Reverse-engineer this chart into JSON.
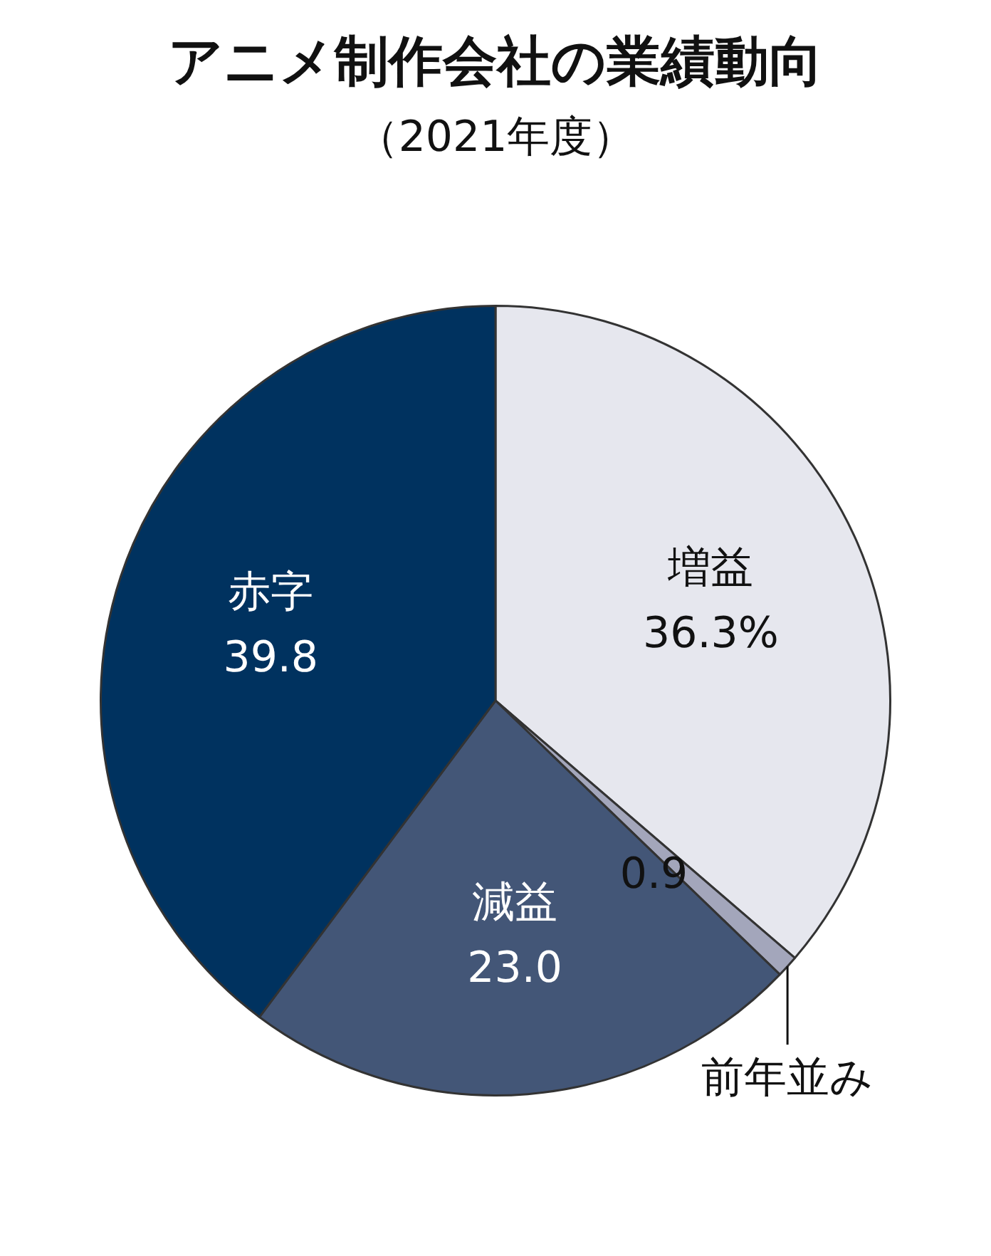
{
  "chart_data": {
    "type": "pie",
    "title": "アニメ制作会社の業績動向",
    "subtitle": "（2021年度）",
    "categories": [
      "増益",
      "前年並み",
      "減益",
      "赤字"
    ],
    "values": [
      36.3,
      0.9,
      23.0,
      39.8
    ],
    "colors": [
      "#e6e7ee",
      "#a3a6bb",
      "#435677",
      "#00325f"
    ],
    "value_labels": [
      "36.3%",
      "0.9",
      "23.0",
      "39.8"
    ],
    "legend": false
  }
}
